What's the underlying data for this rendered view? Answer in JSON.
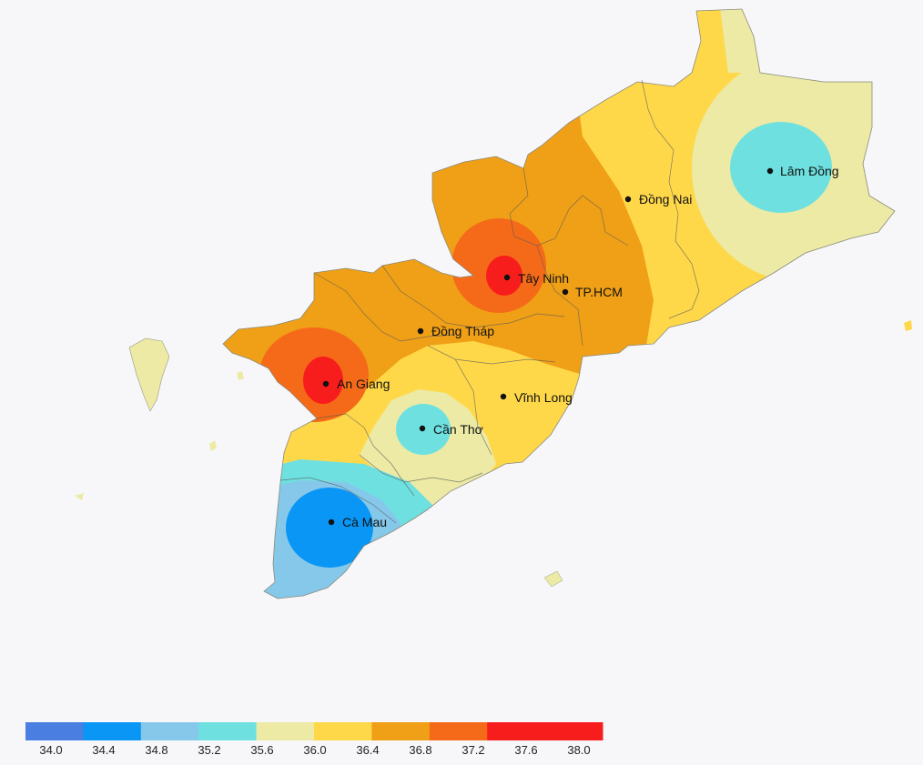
{
  "colors": {
    "background": "#f7f7fa",
    "c_34_0": "#4a7ee0",
    "c_34_4": "#0a96f5",
    "c_34_8": "#85c8ea",
    "c_35_2": "#6fe0e0",
    "c_35_6": "#eceaa4",
    "c_36_0": "#ffd84a",
    "c_36_4": "#f0a016",
    "c_36_8": "#f56a18",
    "c_37_2": "#f81d1d",
    "c_37_6": "#f81d1d",
    "border": "#5a5a5a"
  },
  "cities": [
    {
      "name": "Lâm Đồng",
      "marker": "city-dot"
    },
    {
      "name": "Đồng Nai",
      "marker": "city-dot"
    },
    {
      "name": "Tây Ninh",
      "marker": "city-dot"
    },
    {
      "name": "TP.HCM",
      "marker": "city-dot"
    },
    {
      "name": "Đồng Tháp",
      "marker": "city-dot"
    },
    {
      "name": "An Giang",
      "marker": "city-dot"
    },
    {
      "name": "Vĩnh Long",
      "marker": "city-dot"
    },
    {
      "name": "Cần Thơ",
      "marker": "city-dot"
    },
    {
      "name": "Cà Mau",
      "marker": "city-dot"
    }
  ],
  "legend": {
    "ticks": [
      "34.0",
      "34.4",
      "34.8",
      "35.2",
      "35.6",
      "36.0",
      "36.4",
      "36.8",
      "37.2",
      "37.6",
      "38.0"
    ],
    "bins": [
      {
        "from": 34.0,
        "to": 34.4,
        "color": "#4a7ee0"
      },
      {
        "from": 34.4,
        "to": 34.8,
        "color": "#0a96f5"
      },
      {
        "from": 34.8,
        "to": 35.2,
        "color": "#85c8ea"
      },
      {
        "from": 35.2,
        "to": 35.6,
        "color": "#6fe0e0"
      },
      {
        "from": 35.6,
        "to": 36.0,
        "color": "#eceaa4"
      },
      {
        "from": 36.0,
        "to": 36.4,
        "color": "#ffd84a"
      },
      {
        "from": 36.4,
        "to": 36.8,
        "color": "#f0a016"
      },
      {
        "from": 36.8,
        "to": 37.2,
        "color": "#f56a18"
      },
      {
        "from": 37.2,
        "to": 37.6,
        "color": "#f81d1d"
      },
      {
        "from": 37.6,
        "to": 38.0,
        "color": "#f81d1d"
      }
    ]
  }
}
